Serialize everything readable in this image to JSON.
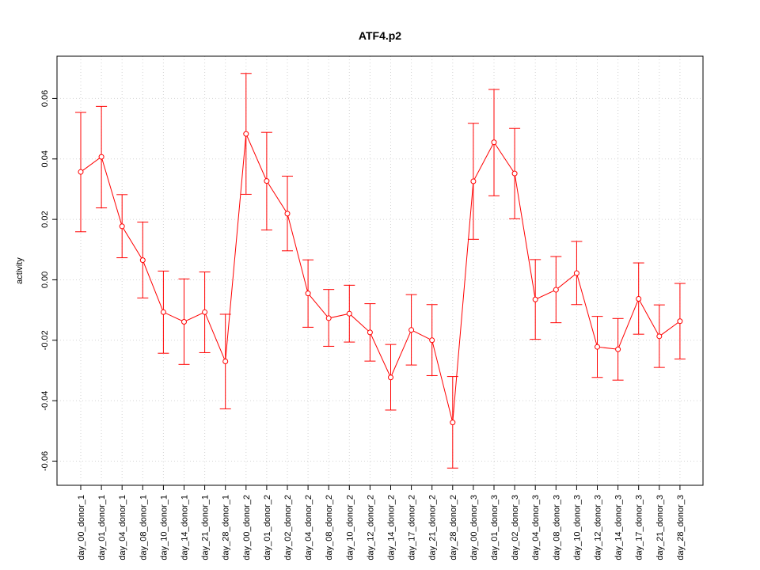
{
  "chart_data": {
    "type": "line",
    "title": "ATF4.p2",
    "xlabel": "",
    "ylabel": "activity",
    "ylim": [
      -0.068,
      0.074
    ],
    "yticks": [
      -0.06,
      -0.04,
      -0.02,
      0.0,
      0.02,
      0.04,
      0.06
    ],
    "ytick_labels": [
      "-0.06",
      "-0.04",
      "-0.02",
      "0.00",
      "0.02",
      "0.04",
      "0.06"
    ],
    "grid": true,
    "color": "#ff0000",
    "categories": [
      "day_00_donor_1",
      "day_01_donor_1",
      "day_04_donor_1",
      "day_08_donor_1",
      "day_10_donor_1",
      "day_14_donor_1",
      "day_21_donor_1",
      "day_28_donor_1",
      "day_00_donor_2",
      "day_01_donor_2",
      "day_02_donor_2",
      "day_04_donor_2",
      "day_08_donor_2",
      "day_10_donor_2",
      "day_12_donor_2",
      "day_14_donor_2",
      "day_17_donor_2",
      "day_21_donor_2",
      "day_28_donor_2",
      "day_00_donor_3",
      "day_01_donor_3",
      "day_02_donor_3",
      "day_04_donor_3",
      "day_08_donor_3",
      "day_10_donor_3",
      "day_12_donor_3",
      "day_14_donor_3",
      "day_17_donor_3",
      "day_21_donor_3",
      "day_28_donor_3"
    ],
    "series": [
      {
        "values": [
          0.0357,
          0.0407,
          0.0177,
          0.0065,
          -0.0107,
          -0.0139,
          -0.0107,
          -0.027,
          0.0483,
          0.0327,
          0.0219,
          -0.0045,
          -0.0127,
          -0.0112,
          -0.0174,
          -0.0323,
          -0.0166,
          -0.02,
          -0.0472,
          0.0326,
          0.0455,
          0.0352,
          -0.0065,
          -0.0033,
          0.0022,
          -0.0222,
          -0.023,
          -0.0063,
          -0.0187,
          -0.0137
        ],
        "lower": [
          0.0159,
          0.0238,
          0.0073,
          -0.006,
          -0.0243,
          -0.028,
          -0.0241,
          -0.0427,
          0.0283,
          0.0165,
          0.0096,
          -0.0157,
          -0.022,
          -0.0206,
          -0.0269,
          -0.0431,
          -0.0282,
          -0.0317,
          -0.0623,
          0.0134,
          0.0278,
          0.0202,
          -0.0197,
          -0.0142,
          -0.0082,
          -0.0323,
          -0.0332,
          -0.018,
          -0.029,
          -0.0262
        ],
        "upper": [
          0.0554,
          0.0574,
          0.0282,
          0.0191,
          0.0029,
          0.0003,
          0.0026,
          -0.0114,
          0.0683,
          0.0488,
          0.0343,
          0.0066,
          -0.0032,
          -0.0018,
          -0.0079,
          -0.0214,
          -0.0049,
          -0.0082,
          -0.032,
          0.0518,
          0.063,
          0.0501,
          0.0067,
          0.0077,
          0.0127,
          -0.0121,
          -0.0128,
          0.0056,
          -0.0083,
          -0.0012
        ]
      }
    ]
  }
}
